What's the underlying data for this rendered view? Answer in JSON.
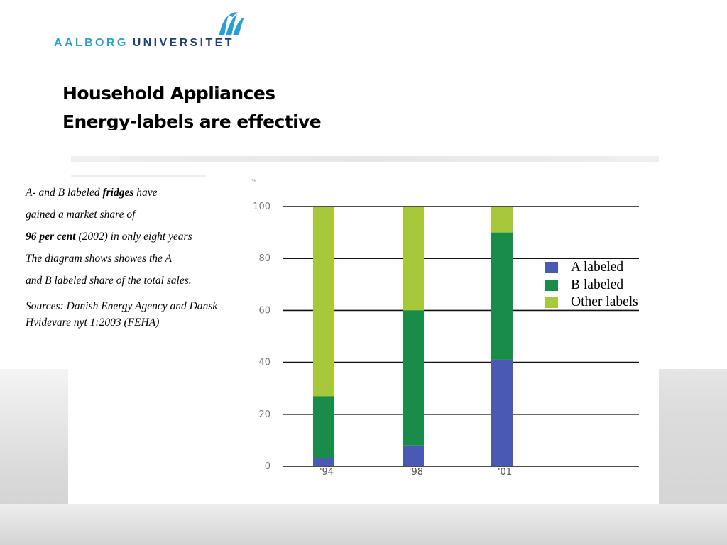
{
  "logo": {
    "word1": "AALBORG",
    "word2": "UNIVERSITET",
    "icon": "seal-waves-icon",
    "colors": {
      "light": "#2a9fd6",
      "dark": "#1f3e7a"
    }
  },
  "title": {
    "line1": "Household Appliances",
    "line2": "Energy-labels are effective"
  },
  "description": {
    "line1_prefix": "A- and B labeled ",
    "line1_bold": "fridges",
    "line1_suffix": " have",
    "line2": "gained a market share of",
    "line3_bold": "96 per cent",
    "line3_suffix": "  (2002) in only eight years",
    "line4": "The diagram shows showes the A",
    "line5": "and B labeled share of the total sales.",
    "sources": "Sources: Danish  Energy Agency  and Dansk Hvidevare nyt 1:2003 (FEHA)"
  },
  "chart_data": {
    "type": "bar",
    "stacked": true,
    "categories": [
      "94",
      "98",
      "01"
    ],
    "series": [
      {
        "name": "A labeled",
        "color": "#4a5ab4",
        "values": [
          3,
          8,
          41
        ]
      },
      {
        "name": "B labeled",
        "color": "#1a8c4a",
        "values": [
          24,
          52,
          49
        ]
      },
      {
        "name": "Other labels",
        "color": "#a8c83c",
        "values": [
          73,
          40,
          10
        ]
      }
    ],
    "yticks": [
      0,
      20,
      40,
      60,
      80,
      100
    ],
    "ylim": [
      0,
      100
    ],
    "y_unit": "%",
    "grid": true,
    "legend_position": "right"
  }
}
